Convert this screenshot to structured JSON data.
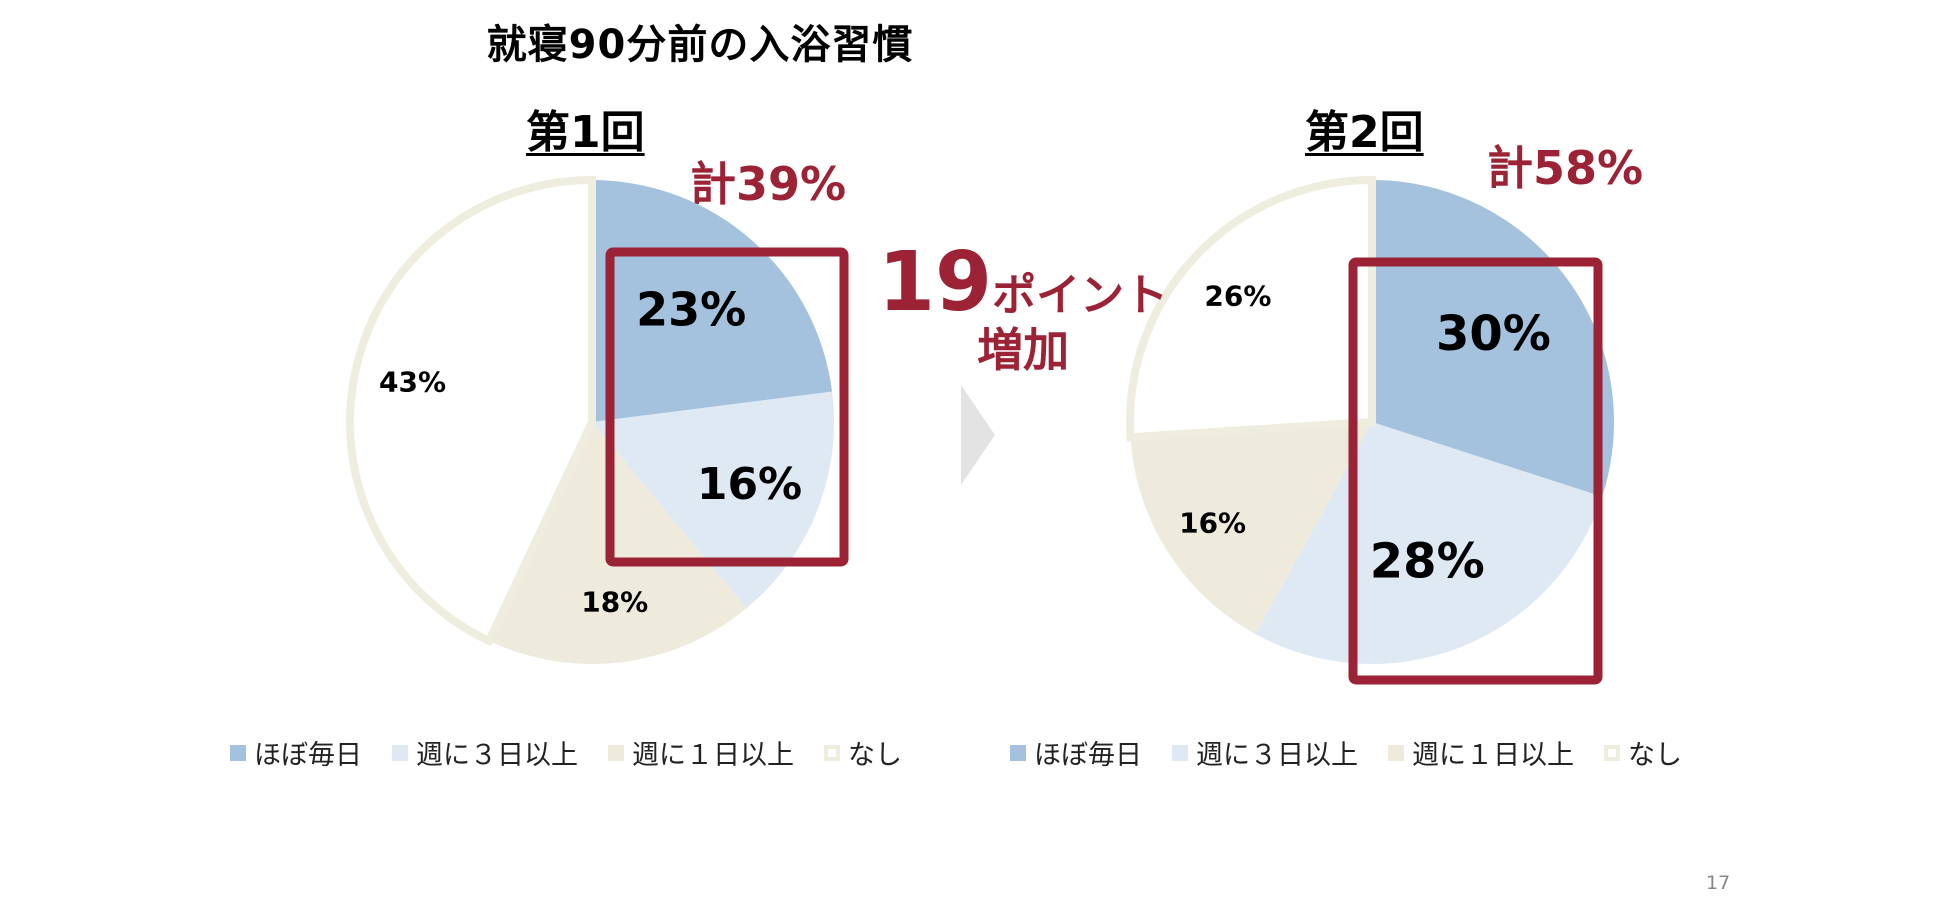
{
  "title": "就寝90分前の入浴習慣",
  "page_number": "17",
  "annotation": {
    "number": "19",
    "unit": "ポイント",
    "sub": "増加",
    "color": "#9b2335"
  },
  "colors": {
    "almost_daily": "#a4c2de",
    "three_days": "#dfe9f3",
    "one_day": "#eeebdd",
    "none_fill": "#ffffff",
    "none_border": "#efeddd",
    "highlight": "#9b2335"
  },
  "chart_data": [
    {
      "type": "pie",
      "title": "第1回",
      "total_label": "計39%",
      "categories": [
        "ほぼ毎日",
        "週に３日以上",
        "週に１日以上",
        "なし"
      ],
      "values": [
        23,
        16,
        18,
        43
      ],
      "labels": [
        "23%",
        "16%",
        "18%",
        "43%"
      ],
      "legend": [
        "ほぼ毎日",
        "週に３日以上",
        "週に１日以上",
        "なし"
      ]
    },
    {
      "type": "pie",
      "title": "第2回",
      "total_label": "計58%",
      "categories": [
        "ほぼ毎日",
        "週に３日以上",
        "週に１日以上",
        "なし"
      ],
      "values": [
        30,
        28,
        16,
        26
      ],
      "labels": [
        "30%",
        "28%",
        "16%",
        "26%"
      ],
      "legend": [
        "ほぼ毎日",
        "週に３日以上",
        "週に１日以上",
        "なし"
      ]
    }
  ]
}
